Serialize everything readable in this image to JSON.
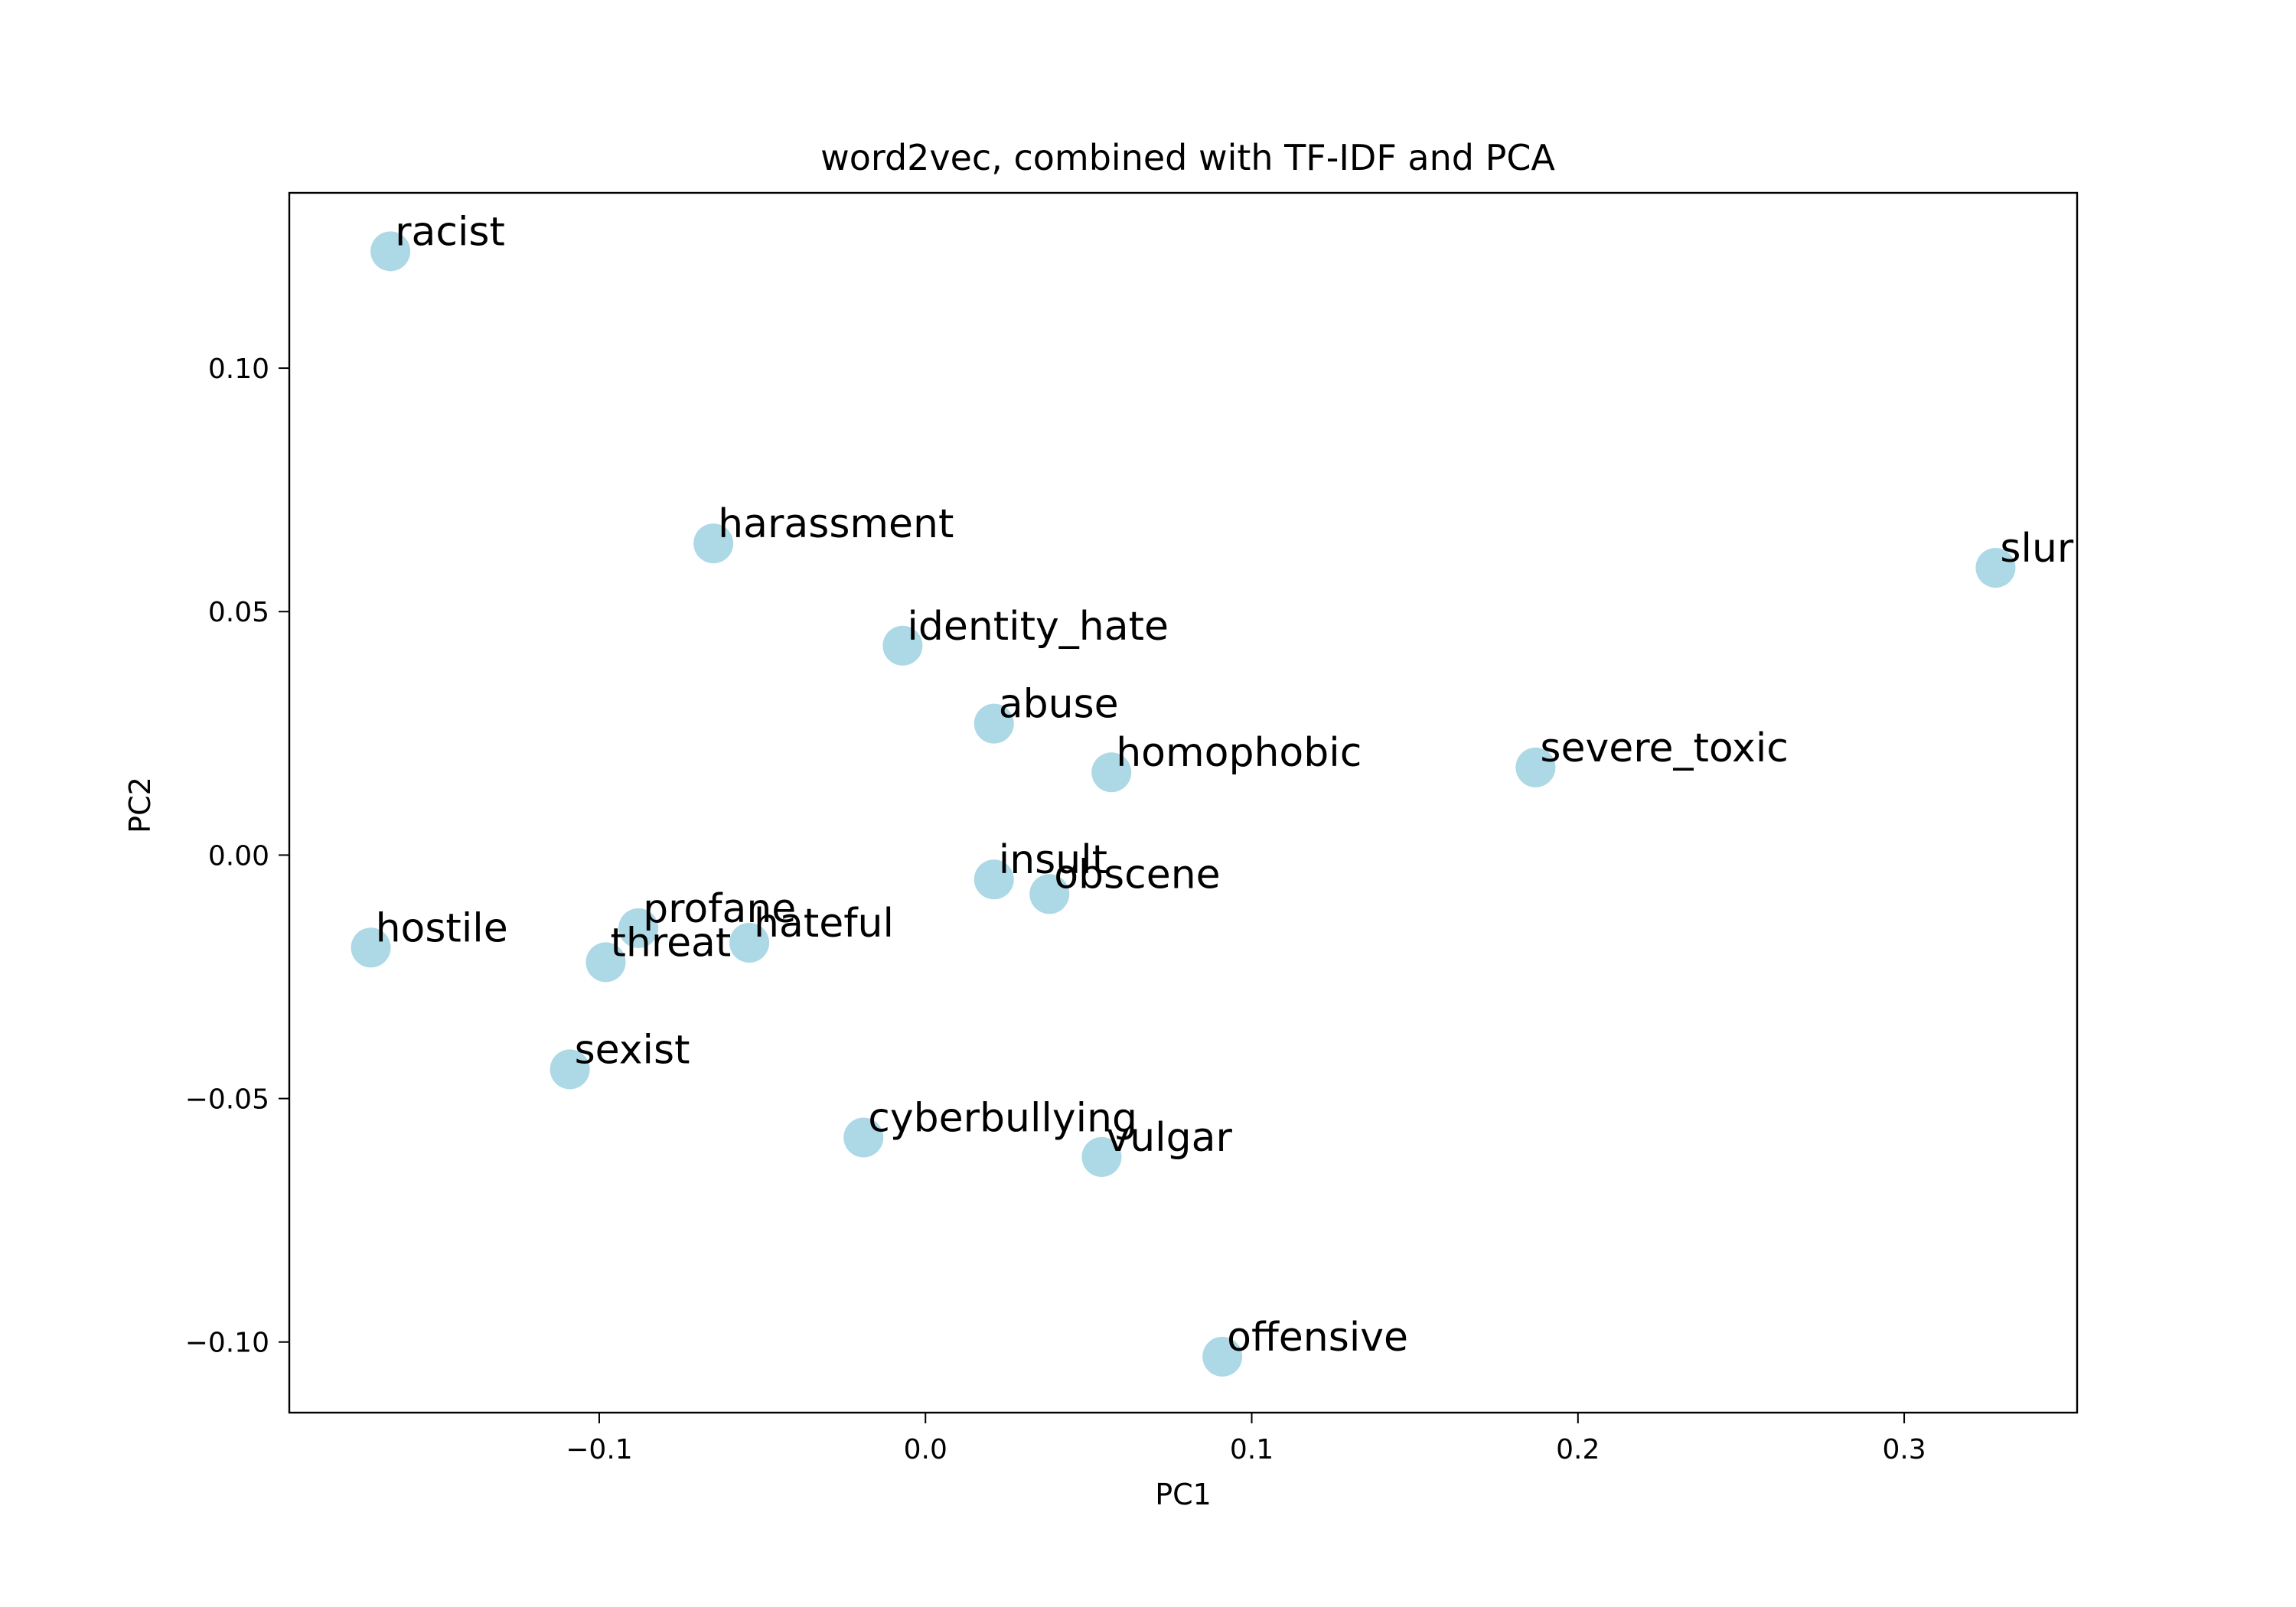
{
  "chart_data": {
    "type": "scatter",
    "title": "word2vec, combined with TF-IDF and PCA",
    "xlabel": "PC1",
    "ylabel": "PC2",
    "xlim": [
      -0.195,
      0.353
    ],
    "ylim": [
      -0.1145,
      0.136
    ],
    "grid": false,
    "legend": "none",
    "marker_color": "#add8e6",
    "xticks": [
      {
        "value": -0.1,
        "label": "−0.1"
      },
      {
        "value": 0.0,
        "label": "0.0"
      },
      {
        "value": 0.1,
        "label": "0.1"
      },
      {
        "value": 0.2,
        "label": "0.2"
      },
      {
        "value": 0.3,
        "label": "0.3"
      }
    ],
    "yticks": [
      {
        "value": 0.1,
        "label": "0.10"
      },
      {
        "value": 0.05,
        "label": "0.05"
      },
      {
        "value": 0.0,
        "label": "0.00"
      },
      {
        "value": -0.05,
        "label": "−0.05"
      },
      {
        "value": -0.1,
        "label": "−0.10"
      }
    ],
    "points": [
      {
        "label": "racist",
        "x": -0.164,
        "y": 0.124
      },
      {
        "label": "harassment",
        "x": -0.065,
        "y": 0.064
      },
      {
        "label": "slur",
        "x": 0.328,
        "y": 0.059
      },
      {
        "label": "identity_hate",
        "x": -0.007,
        "y": 0.043
      },
      {
        "label": "abuse",
        "x": 0.021,
        "y": 0.027
      },
      {
        "label": "homophobic",
        "x": 0.057,
        "y": 0.017
      },
      {
        "label": "severe_toxic",
        "x": 0.187,
        "y": 0.018
      },
      {
        "label": "insult",
        "x": 0.021,
        "y": -0.005
      },
      {
        "label": "obscene",
        "x": 0.038,
        "y": -0.008
      },
      {
        "label": "hostile",
        "x": -0.17,
        "y": -0.019
      },
      {
        "label": "profane",
        "x": -0.088,
        "y": -0.015
      },
      {
        "label": "hateful",
        "x": -0.054,
        "y": -0.018
      },
      {
        "label": "threat",
        "x": -0.098,
        "y": -0.022
      },
      {
        "label": "sexist",
        "x": -0.109,
        "y": -0.044
      },
      {
        "label": "cyberbullying",
        "x": -0.019,
        "y": -0.058
      },
      {
        "label": "vulgar",
        "x": 0.054,
        "y": -0.062
      },
      {
        "label": "offensive",
        "x": 0.091,
        "y": -0.103
      }
    ]
  }
}
